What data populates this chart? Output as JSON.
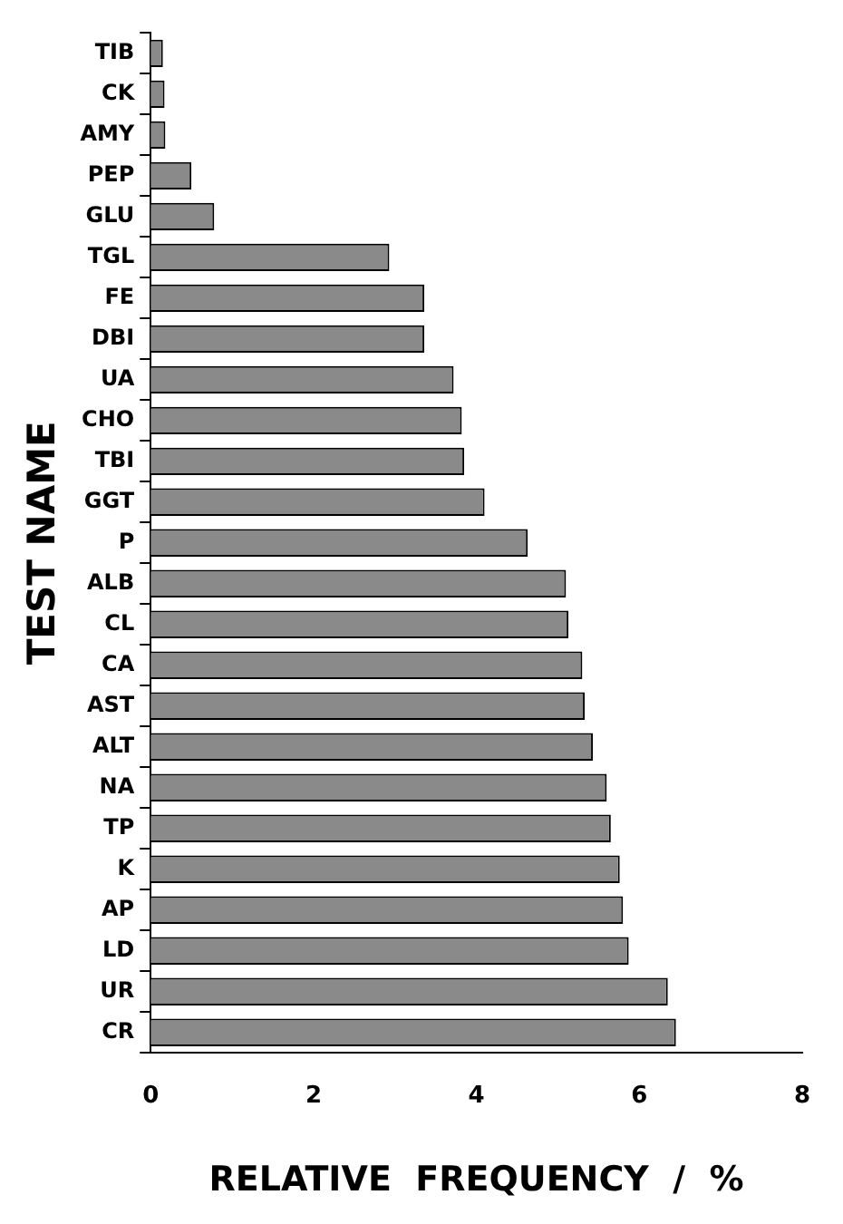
{
  "chart_data": {
    "type": "bar",
    "orientation": "horizontal",
    "xlabel": "RELATIVE  FREQUENCY  /  %",
    "ylabel": "TEST NAME",
    "categories": [
      "TIB",
      "CK",
      "AMY",
      "PEP",
      "GLU",
      "TGL",
      "FE",
      "DBI",
      "UA",
      "CHO",
      "TBI",
      "GGT",
      "P",
      "ALB",
      "CL",
      "CA",
      "AST",
      "ALT",
      "NA",
      "TP",
      "K",
      "AP",
      "LD",
      "UR",
      "CR"
    ],
    "values": [
      0.15,
      0.17,
      0.18,
      0.5,
      0.78,
      2.93,
      3.36,
      3.36,
      3.72,
      3.82,
      3.85,
      4.1,
      4.63,
      5.1,
      5.13,
      5.3,
      5.33,
      5.43,
      5.6,
      5.65,
      5.76,
      5.8,
      5.87,
      6.35,
      6.45
    ],
    "color": "#8a8a8a",
    "xlim": [
      0,
      8
    ],
    "xticks": [
      0,
      2,
      4,
      6,
      8
    ],
    "grid": false,
    "legend": false
  }
}
